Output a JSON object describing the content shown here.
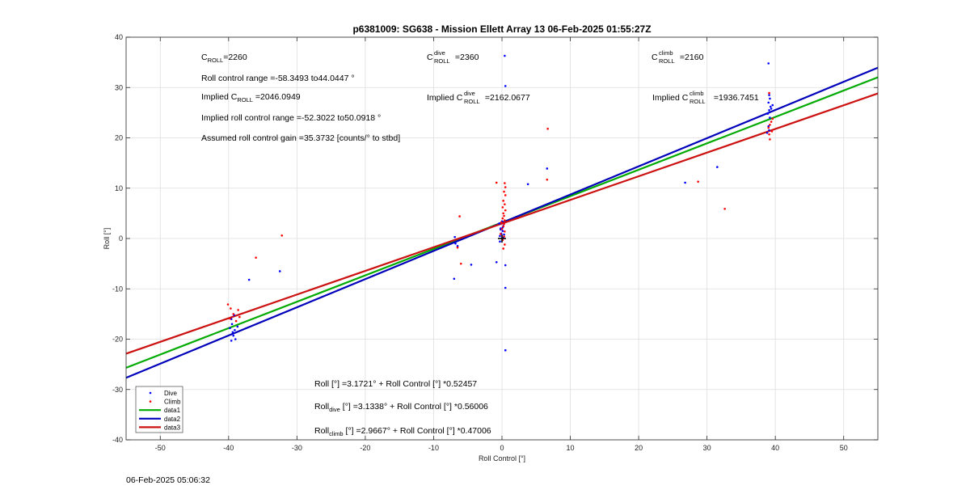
{
  "timestamp": "06-Feb-2025 05:06:32",
  "chart_data": {
    "type": "scatter",
    "title": "p6381009: SG638 - Mission Ellett Array 13 06-Feb-2025 01:55:27Z",
    "xlabel": "Roll Control [°]",
    "ylabel": "Roll [°]",
    "xlim": [
      -55,
      55
    ],
    "ylim": [
      -40,
      40
    ],
    "xticks": [
      -50,
      -40,
      -30,
      -20,
      -10,
      0,
      10,
      20,
      30,
      40,
      50
    ],
    "yticks": [
      -40,
      -30,
      -20,
      -10,
      0,
      10,
      20,
      30,
      40
    ],
    "grid": true,
    "legend_position": "bottom-left",
    "legend": [
      {
        "label": "Dive",
        "kind": "marker",
        "color": "#0000ff"
      },
      {
        "label": "Climb",
        "kind": "marker",
        "color": "#ff0000"
      },
      {
        "label": "data1",
        "kind": "line",
        "color": "#00aa00"
      },
      {
        "label": "data2",
        "kind": "line",
        "color": "#0000bb"
      },
      {
        "label": "data3",
        "kind": "line",
        "color": "#cc1111"
      }
    ],
    "series": [
      {
        "name": "Dive",
        "kind": "scatter",
        "color": "#0000ff",
        "points": [
          [
            -39.2,
            -15.2
          ],
          [
            -39.6,
            -16.0
          ],
          [
            -39.5,
            -17.0
          ],
          [
            -39.8,
            -17.8
          ],
          [
            -39.4,
            -18.6
          ],
          [
            -39.3,
            -19.3
          ],
          [
            -39.0,
            -20.0
          ],
          [
            -39.6,
            -20.3
          ],
          [
            -39.1,
            -18.2
          ],
          [
            -38.7,
            -17.5
          ],
          [
            -37.0,
            -8.2
          ],
          [
            -32.5,
            -6.5
          ],
          [
            -6.8,
            -1.0
          ],
          [
            -6.5,
            -1.5
          ],
          [
            -6.9,
            0.3
          ],
          [
            -7.0,
            -8.0
          ],
          [
            -4.5,
            -5.2
          ],
          [
            -0.8,
            -4.7
          ],
          [
            0.5,
            -5.3
          ],
          [
            0.5,
            -9.8
          ],
          [
            0.5,
            -22.2
          ],
          [
            0.4,
            36.3
          ],
          [
            0.5,
            30.3
          ],
          [
            -0.3,
            0.5
          ],
          [
            -0.1,
            1.0
          ],
          [
            0.1,
            1.5
          ],
          [
            -0.2,
            2.0
          ],
          [
            0.2,
            2.5
          ],
          [
            -0.4,
            3.0
          ],
          [
            0.0,
            3.4
          ],
          [
            0.3,
            0.8
          ],
          [
            -0.2,
            1.8
          ],
          [
            0.1,
            2.2
          ],
          [
            0.2,
            0.2
          ],
          [
            -0.3,
            -0.6
          ],
          [
            3.8,
            10.8
          ],
          [
            6.6,
            13.9
          ],
          [
            26.8,
            11.1
          ],
          [
            31.5,
            14.2
          ],
          [
            39.0,
            34.8
          ],
          [
            39.1,
            28.5
          ],
          [
            39.2,
            27.8
          ],
          [
            39.0,
            27.0
          ],
          [
            39.3,
            26.2
          ],
          [
            39.1,
            25.5
          ],
          [
            38.9,
            24.8
          ],
          [
            39.2,
            24.0
          ],
          [
            39.0,
            22.3
          ],
          [
            39.1,
            21.5
          ],
          [
            38.8,
            21.0
          ],
          [
            39.4,
            25.8
          ],
          [
            39.6,
            26.5
          ]
        ]
      },
      {
        "name": "Climb",
        "kind": "scatter",
        "color": "#ff0000",
        "points": [
          [
            -40.1,
            -13.1
          ],
          [
            -39.7,
            -13.9
          ],
          [
            -39.3,
            -15.0
          ],
          [
            -38.6,
            -14.2
          ],
          [
            -38.4,
            -15.6
          ],
          [
            -38.9,
            -16.4
          ],
          [
            -39.8,
            -15.9
          ],
          [
            -36.0,
            -3.8
          ],
          [
            -32.2,
            0.6
          ],
          [
            -6.2,
            4.4
          ],
          [
            -6.5,
            -1.8
          ],
          [
            -6.0,
            -5.0
          ],
          [
            -0.8,
            11.1
          ],
          [
            0.4,
            11.0
          ],
          [
            0.5,
            10.2
          ],
          [
            0.3,
            9.3
          ],
          [
            0.5,
            8.6
          ],
          [
            0.2,
            7.5
          ],
          [
            0.4,
            6.8
          ],
          [
            0.1,
            6.2
          ],
          [
            0.5,
            5.6
          ],
          [
            0.2,
            5.0
          ],
          [
            0.3,
            4.5
          ],
          [
            0.1,
            4.0
          ],
          [
            0.4,
            3.6
          ],
          [
            -0.1,
            3.2
          ],
          [
            0.3,
            2.9
          ],
          [
            0.2,
            2.4
          ],
          [
            0.0,
            1.9
          ],
          [
            0.4,
            1.4
          ],
          [
            -0.2,
            0.9
          ],
          [
            0.3,
            0.4
          ],
          [
            0.1,
            -0.3
          ],
          [
            0.4,
            -1.2
          ],
          [
            0.2,
            -2.0
          ],
          [
            6.7,
            21.8
          ],
          [
            6.6,
            11.7
          ],
          [
            28.7,
            11.3
          ],
          [
            32.6,
            5.9
          ],
          [
            39.1,
            28.9
          ],
          [
            39.4,
            23.2
          ],
          [
            39.2,
            22.6
          ],
          [
            39.0,
            22.0
          ],
          [
            39.5,
            21.3
          ],
          [
            39.1,
            20.7
          ],
          [
            39.2,
            19.7
          ],
          [
            39.6,
            23.8
          ]
        ]
      }
    ],
    "fit_lines": [
      {
        "name": "data1",
        "color": "#00aa00",
        "intercept": 3.1721,
        "slope": 0.52457
      },
      {
        "name": "data2",
        "color": "#0000bb",
        "intercept": 3.1338,
        "slope": 0.56006
      },
      {
        "name": "data3",
        "color": "#cc1111",
        "intercept": 2.9667,
        "slope": 0.47006
      }
    ],
    "center_marker": {
      "x": 0.0,
      "y": 0.0,
      "color": "#000000"
    },
    "annotations": {
      "croll": {
        "base": "C",
        "sub": "ROLL",
        "rest": "=2260"
      },
      "range": {
        "text": "Roll control range =-58.3493 to44.0447 °"
      },
      "implied": {
        "pre": "Implied C",
        "sub": "ROLL",
        "rest": " =2046.0949"
      },
      "implied_range": {
        "text": "Implied roll control range =-52.3022 to50.0918 °"
      },
      "gain": {
        "text": "Assumed roll control gain =35.3732 [counts/° to stbd]"
      },
      "croll_dive": {
        "base": "C",
        "sup": "dive",
        "sub": "ROLL",
        "rest": " =2360"
      },
      "implied_dive": {
        "pre": "Implied C",
        "sup": "dive",
        "sub": "ROLL",
        "rest": " =2162.0677"
      },
      "croll_climb": {
        "base": "C",
        "sup": "climb",
        "sub": "ROLL",
        "rest": " =2160"
      },
      "implied_climb": {
        "pre": "Implied C",
        "sup": "climb",
        "sub": "ROLL",
        "rest": " =1936.7451"
      },
      "eq_all": {
        "text": "Roll [°] =3.1721° + Roll Control [°] *0.52457"
      },
      "eq_dive": {
        "base": "Roll",
        "sub": "dive",
        "rest": " [°] =3.1338° + Roll Control [°] *0.56006"
      },
      "eq_climb": {
        "base": "Roll",
        "sub": "climb",
        "rest": " [°] =2.9667° + Roll Control [°] *0.47006"
      }
    }
  }
}
